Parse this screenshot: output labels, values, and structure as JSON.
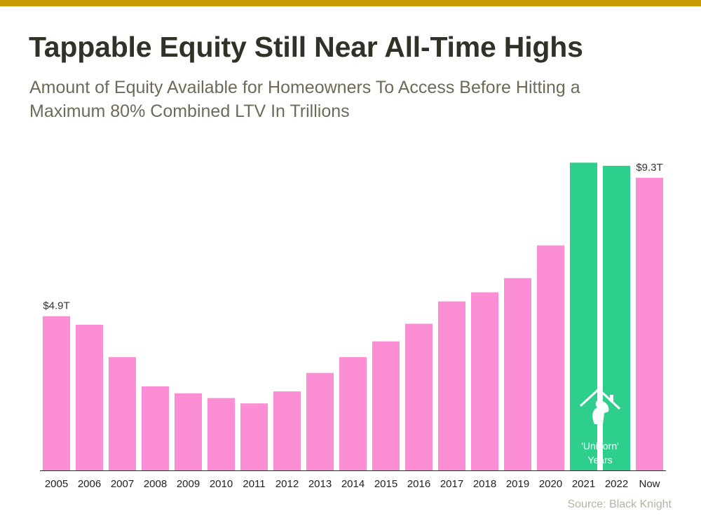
{
  "header": {
    "title": "Tappable Equity Still Near All-Time Highs",
    "subtitle": "Amount of Equity Available for Homeowners To Access Before Hitting a Maximum 80% Combined LTV In Trillions"
  },
  "footer": {
    "source": "Source: Black Knight"
  },
  "colors": {
    "accent_bar": "#c99a06",
    "pink": "#fb8ed5",
    "green": "#2ecf8c",
    "baseline": "#2b2b2b"
  },
  "chart_data": {
    "type": "bar",
    "categories": [
      "2005",
      "2006",
      "2007",
      "2008",
      "2009",
      "2010",
      "2011",
      "2012",
      "2013",
      "2014",
      "2015",
      "2016",
      "2017",
      "2018",
      "2019",
      "2020",
      "2021",
      "2022",
      "Now"
    ],
    "values": [
      4.9,
      4.63,
      3.6,
      2.67,
      2.45,
      2.3,
      2.13,
      2.51,
      3.1,
      3.6,
      4.1,
      4.66,
      5.37,
      5.66,
      6.11,
      7.15,
      9.78,
      9.68,
      9.3
    ],
    "highlight": [
      "2021",
      "2022"
    ],
    "data_labels": [
      {
        "category": "2005",
        "text": "$4.9T"
      },
      {
        "category": "Now",
        "text": "$9.3T"
      }
    ],
    "annotation": {
      "lines": [
        "'Unicorn'",
        "Years"
      ],
      "icon": "unicorn-house-icon"
    },
    "ylim": [
      0,
      10.5
    ],
    "grid": false,
    "legend": "none"
  }
}
